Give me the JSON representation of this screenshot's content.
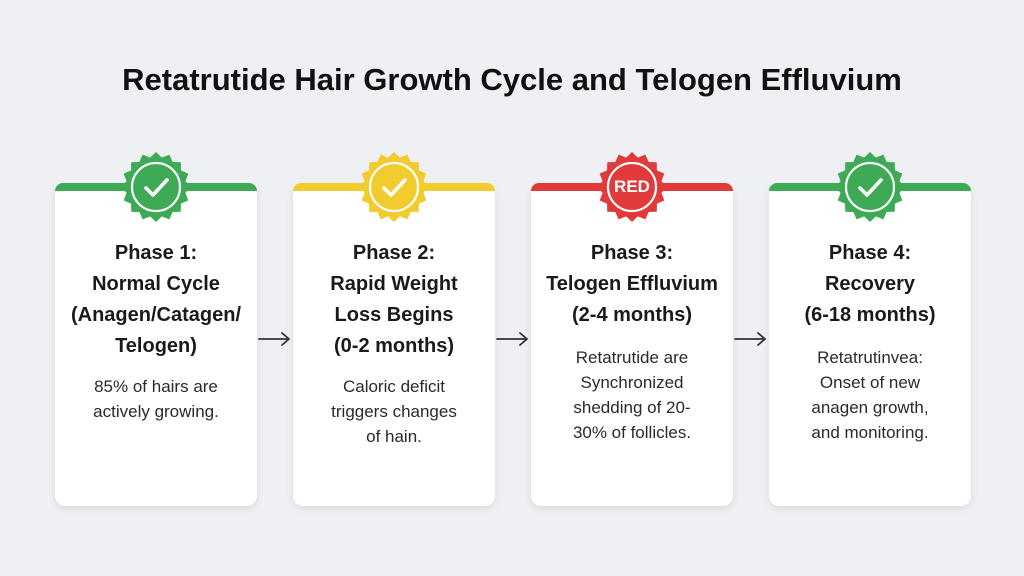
{
  "title": "Retatrutide Hair Growth Cycle and Telogen Effluvium",
  "colors": {
    "green": "#3eaa55",
    "yellow": "#f2cc2e",
    "red": "#e03a3a"
  },
  "phases": [
    {
      "badge_icon": "check-icon",
      "badge_text": "",
      "color": "#3eaa55",
      "heading": [
        "Phase 1:",
        "Normal Cycle",
        "(Anagen/Catagen/",
        "Telogen)"
      ],
      "desc": [
        "85% of hairs are",
        "actively growing."
      ]
    },
    {
      "badge_icon": "check-icon",
      "badge_text": "",
      "color": "#f2cc2e",
      "heading": [
        "Phase 2:",
        "Rapid Weight",
        "Loss Begins",
        "(0-2 months)"
      ],
      "desc": [
        "Caloric deficit",
        "triggers changes",
        "of hain."
      ]
    },
    {
      "badge_icon": "text",
      "badge_text": "RED",
      "color": "#e03a3a",
      "heading": [
        "Phase 3:",
        "Telogen Effluvium",
        "(2-4 months)"
      ],
      "desc": [
        "Retatrutide are",
        "Synchronized",
        "shedding of 20-",
        "30% of follicles."
      ]
    },
    {
      "badge_icon": "check-icon",
      "badge_text": "",
      "color": "#3eaa55",
      "heading": [
        "Phase 4:",
        "Recovery",
        "(6-18 months)"
      ],
      "desc": [
        "Retatrutinvea:",
        "Onset of new",
        "anagen growth,",
        "and monitoring."
      ]
    }
  ]
}
